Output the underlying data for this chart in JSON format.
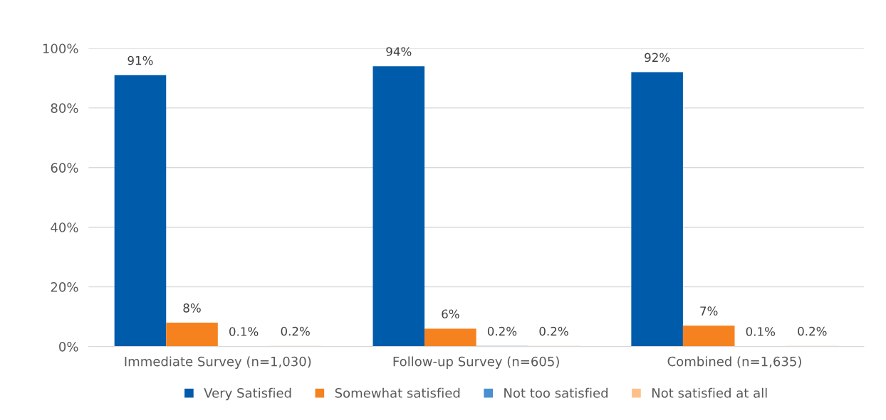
{
  "chart_data": {
    "type": "bar",
    "categories": [
      "Immediate Survey (n=1,030)",
      "Follow-up Survey (n=605)",
      "Combined (n=1,635)"
    ],
    "series": [
      {
        "name": "Very Satisfied",
        "color": "#005bab",
        "values": [
          91,
          94,
          92
        ],
        "value_labels": [
          "91%",
          "94%",
          "92%"
        ]
      },
      {
        "name": "Somewhat satisfied",
        "color": "#f5821f",
        "values": [
          8,
          6,
          7
        ],
        "value_labels": [
          "8%",
          "6%",
          "7%"
        ]
      },
      {
        "name": "Not too satisfied",
        "color": "#4a90d0",
        "values": [
          0.1,
          0.2,
          0.1
        ],
        "value_labels": [
          "0.1%",
          "0.2%",
          "0.1%"
        ]
      },
      {
        "name": "Not satisfied at all",
        "color": "#fdc08a",
        "values": [
          0.2,
          0.2,
          0.2
        ],
        "value_labels": [
          "0.2%",
          "0.2%",
          "0.2%"
        ]
      }
    ],
    "ylim": [
      0,
      100
    ],
    "yticks": [
      {
        "value": 0,
        "label": "0%"
      },
      {
        "value": 20,
        "label": "20%"
      },
      {
        "value": 40,
        "label": "40%"
      },
      {
        "value": 60,
        "label": "60%"
      },
      {
        "value": 80,
        "label": "80%"
      },
      {
        "value": 100,
        "label": "100%"
      }
    ],
    "grid": "y",
    "legend": "bottom"
  }
}
